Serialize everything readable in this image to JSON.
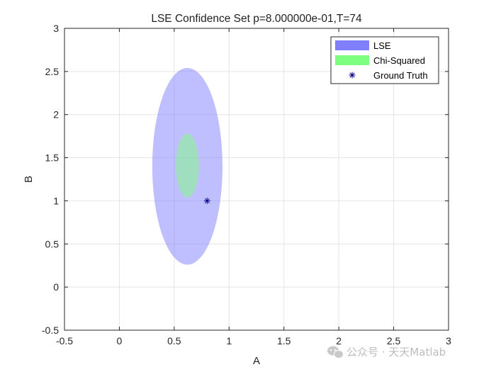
{
  "chart_data": {
    "type": "scatter",
    "title": "LSE Confidence Set p=8.000000e-01,T=74",
    "xlabel": "A",
    "ylabel": "B",
    "xlim": [
      -0.5,
      3
    ],
    "ylim": [
      -0.5,
      3
    ],
    "xticks": [
      "-0.5",
      "0",
      "0.5",
      "1",
      "1.5",
      "2",
      "2.5",
      "3"
    ],
    "yticks": [
      "-0.5",
      "0",
      "0.5",
      "1",
      "1.5",
      "2",
      "2.5",
      "3"
    ],
    "grid": true,
    "legend_position": "top-right",
    "series": [
      {
        "name": "LSE",
        "kind": "region",
        "color": "#7f7fff",
        "center": [
          0.62,
          1.4
        ],
        "half_width": 0.32,
        "half_height": 1.14
      },
      {
        "name": "Chi-Squared",
        "kind": "region",
        "color": "#7fff7f",
        "center": [
          0.62,
          1.41
        ],
        "half_width": 0.105,
        "half_height": 0.37
      },
      {
        "name": "Ground Truth",
        "kind": "marker",
        "marker": "asterisk",
        "color": "#00008b",
        "x": 0.8,
        "y": 1.0
      }
    ]
  },
  "watermark": "公众号 · 天天Matlab"
}
